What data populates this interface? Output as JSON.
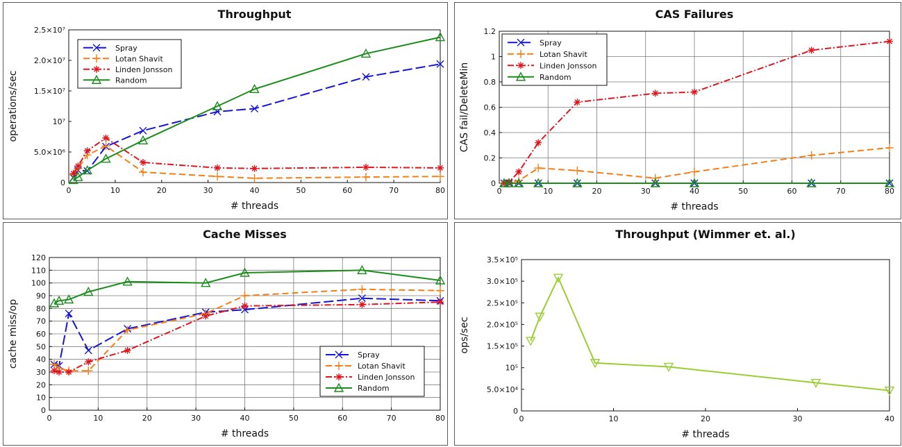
{
  "chart_data": [
    {
      "type": "line",
      "title": "Throughput",
      "xlabel": "# threads",
      "ylabel": "operations/sec",
      "xlim": [
        0,
        80
      ],
      "ylim": [
        0,
        25000000
      ],
      "xticks": [
        0,
        10,
        20,
        30,
        40,
        50,
        60,
        70,
        80
      ],
      "yticks": [
        {
          "value": 0,
          "label": "0"
        },
        {
          "value": 5000000,
          "label": "5.0×10⁶"
        },
        {
          "value": 10000000,
          "label": "10⁷"
        },
        {
          "value": 15000000,
          "label": "1.5×10⁷"
        },
        {
          "value": 20000000,
          "label": "2.0×10⁷"
        },
        {
          "value": 25000000,
          "label": "2.5×10⁷"
        }
      ],
      "grid": false,
      "legend": "top-left",
      "series": [
        {
          "name": "Spray",
          "color": "#1515d6",
          "marker": "x",
          "dash": "long",
          "x": [
            1,
            2,
            4,
            8,
            16,
            32,
            40,
            64,
            80
          ],
          "y": [
            800000,
            2000000,
            1900000,
            5900000,
            8500000,
            11600000,
            12100000,
            17300000,
            19400000
          ]
        },
        {
          "name": "Lotan Shavit",
          "color": "#f57d12",
          "marker": "plus",
          "dash": "medium",
          "x": [
            1,
            2,
            4,
            8,
            16,
            32,
            40,
            64,
            80
          ],
          "y": [
            1300000,
            2300000,
            4500000,
            6000000,
            1700000,
            1000000,
            700000,
            900000,
            1000000
          ]
        },
        {
          "name": "Linden Jonsson",
          "color": "#e0141c",
          "marker": "star",
          "dash": "dashdot",
          "x": [
            1,
            2,
            4,
            8,
            16,
            32,
            40,
            64,
            80
          ],
          "y": [
            1500000,
            2700000,
            5200000,
            7300000,
            3300000,
            2400000,
            2300000,
            2500000,
            2400000
          ]
        },
        {
          "name": "Random",
          "color": "#1a8c1a",
          "marker": "triangle",
          "dash": "solid",
          "x": [
            1,
            2,
            4,
            8,
            16,
            32,
            40,
            64,
            80
          ],
          "y": [
            400000,
            900000,
            2000000,
            3900000,
            6900000,
            12500000,
            15300000,
            21100000,
            23800000
          ]
        }
      ]
    },
    {
      "type": "line",
      "title": "CAS Failures",
      "xlabel": "# threads",
      "ylabel": "CAS fail/DeleteMin",
      "xlim": [
        0,
        80
      ],
      "ylim": [
        0,
        1.2
      ],
      "xticks": [
        0,
        10,
        20,
        30,
        40,
        50,
        60,
        70,
        80
      ],
      "yticks": [
        {
          "value": 0,
          "label": "0"
        },
        {
          "value": 0.2,
          "label": "0.2"
        },
        {
          "value": 0.4,
          "label": "0.4"
        },
        {
          "value": 0.6,
          "label": "0.6"
        },
        {
          "value": 0.8,
          "label": "0.8"
        },
        {
          "value": 1,
          "label": "1"
        },
        {
          "value": 1.2,
          "label": "1.2"
        }
      ],
      "grid": true,
      "legend": "top-left",
      "series": [
        {
          "name": "Spray",
          "color": "#1515d6",
          "marker": "x",
          "dash": "long",
          "x": [
            1,
            2,
            4,
            8,
            16,
            32,
            40,
            64,
            80
          ],
          "y": [
            0,
            0,
            0,
            0,
            0,
            0,
            0,
            0,
            0
          ]
        },
        {
          "name": "Lotan Shavit",
          "color": "#f57d12",
          "marker": "plus",
          "dash": "medium",
          "x": [
            1,
            2,
            4,
            8,
            16,
            32,
            40,
            64,
            80
          ],
          "y": [
            0,
            0.005,
            0.02,
            0.12,
            0.1,
            0.04,
            0.09,
            0.22,
            0.28
          ]
        },
        {
          "name": "Linden Jonsson",
          "color": "#e0141c",
          "marker": "star",
          "dash": "dashdot",
          "x": [
            1,
            2,
            4,
            8,
            16,
            32,
            40,
            64,
            80
          ],
          "y": [
            0,
            0.01,
            0.09,
            0.32,
            0.64,
            0.71,
            0.72,
            1.05,
            1.12
          ]
        },
        {
          "name": "Random",
          "color": "#1a8c1a",
          "marker": "triangle",
          "dash": "solid",
          "x": [
            1,
            2,
            4,
            8,
            16,
            32,
            40,
            64,
            80
          ],
          "y": [
            0,
            0,
            0,
            0,
            0,
            0,
            0,
            0,
            0
          ]
        }
      ]
    },
    {
      "type": "line",
      "title": "Cache Misses",
      "xlabel": "# threads",
      "ylabel": "cache miss/op",
      "xlim": [
        0,
        80
      ],
      "ylim": [
        0,
        120
      ],
      "xticks": [
        0,
        10,
        20,
        30,
        40,
        50,
        60,
        70,
        80
      ],
      "yticks": [
        {
          "value": 0,
          "label": "0"
        },
        {
          "value": 10,
          "label": "10"
        },
        {
          "value": 20,
          "label": "20"
        },
        {
          "value": 30,
          "label": "30"
        },
        {
          "value": 40,
          "label": "40"
        },
        {
          "value": 50,
          "label": "50"
        },
        {
          "value": 60,
          "label": "60"
        },
        {
          "value": 70,
          "label": "70"
        },
        {
          "value": 80,
          "label": "80"
        },
        {
          "value": 90,
          "label": "90"
        },
        {
          "value": 100,
          "label": "100"
        },
        {
          "value": 110,
          "label": "110"
        },
        {
          "value": 120,
          "label": "120"
        }
      ],
      "grid": true,
      "legend": "bottom-right",
      "series": [
        {
          "name": "Spray",
          "color": "#1515d6",
          "marker": "x",
          "dash": "long",
          "x": [
            1,
            2,
            4,
            8,
            16,
            32,
            40,
            64,
            80
          ],
          "y": [
            36,
            35,
            76,
            47,
            64,
            77,
            79,
            88,
            86
          ]
        },
        {
          "name": "Lotan Shavit",
          "color": "#f57d12",
          "marker": "plus",
          "dash": "medium",
          "x": [
            1,
            2,
            4,
            8,
            16,
            32,
            40,
            64,
            80
          ],
          "y": [
            36,
            33,
            31,
            31,
            63,
            76,
            90,
            95,
            94
          ]
        },
        {
          "name": "Linden Jonsson",
          "color": "#e0141c",
          "marker": "star",
          "dash": "dashdot",
          "x": [
            1,
            2,
            4,
            8,
            16,
            32,
            40,
            64,
            80
          ],
          "y": [
            31,
            30,
            30,
            38,
            47,
            74,
            82,
            83,
            85
          ]
        },
        {
          "name": "Random",
          "color": "#1a8c1a",
          "marker": "triangle",
          "dash": "solid",
          "x": [
            1,
            2,
            4,
            8,
            16,
            32,
            40,
            64,
            80
          ],
          "y": [
            84,
            86,
            87,
            93,
            101,
            100,
            108,
            110,
            102
          ]
        }
      ]
    },
    {
      "type": "line",
      "title": "Throughput (Wimmer et. al.)",
      "xlabel": "# threads",
      "ylabel": "ops/sec",
      "xlim": [
        0,
        40
      ],
      "ylim": [
        0,
        350000
      ],
      "xticks": [
        0,
        10,
        20,
        30,
        40
      ],
      "yticks": [
        {
          "value": 0,
          "label": "0"
        },
        {
          "value": 50000,
          "label": "5.0×10⁴"
        },
        {
          "value": 100000,
          "label": "10⁵"
        },
        {
          "value": 150000,
          "label": "1.5×10⁵"
        },
        {
          "value": 200000,
          "label": "2.0×10⁵"
        },
        {
          "value": 250000,
          "label": "2.5×10⁵"
        },
        {
          "value": 300000,
          "label": "3.0×10⁵"
        },
        {
          "value": 350000,
          "label": "3.5×10⁵"
        }
      ],
      "grid": false,
      "legend": "none",
      "series": [
        {
          "color": "#9acd32",
          "marker": "triangle-down",
          "dash": "solid",
          "x": [
            1,
            2,
            4,
            8,
            16,
            32,
            40
          ],
          "y": [
            162000,
            218000,
            308000,
            111000,
            102000,
            65000,
            47000
          ]
        }
      ]
    }
  ]
}
